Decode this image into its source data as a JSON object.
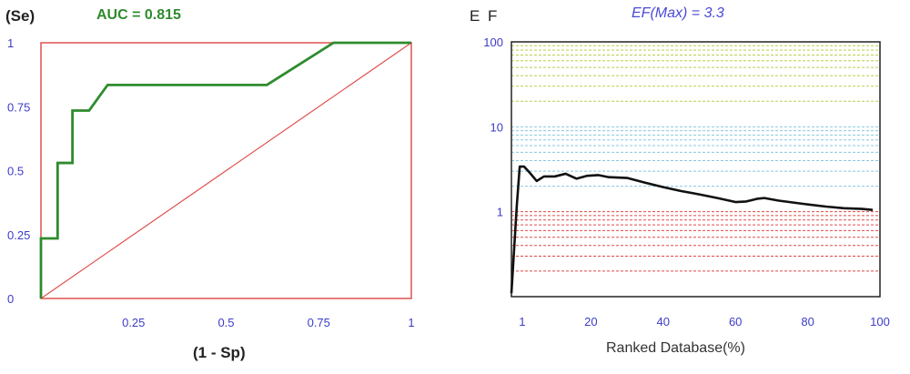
{
  "chart_data": [
    {
      "type": "line",
      "title": "AUC = 0.815",
      "ylabel": "(Se)",
      "xlabel": "(1 - Sp)",
      "xlim": [
        0,
        1
      ],
      "ylim": [
        0,
        1
      ],
      "x_ticks": [
        "0.25",
        "0.5",
        "0.75",
        "1"
      ],
      "y_ticks": [
        "0",
        "0.25",
        "0.5",
        "0.75",
        "1"
      ],
      "series": [
        {
          "color": "#2e8b2e",
          "points": [
            [
              0,
              0
            ],
            [
              0,
              0.235
            ],
            [
              0.045,
              0.235
            ],
            [
              0.045,
              0.53
            ],
            [
              0.085,
              0.53
            ],
            [
              0.085,
              0.735
            ],
            [
              0.13,
              0.735
            ],
            [
              0.18,
              0.835
            ],
            [
              0.61,
              0.835
            ],
            [
              0.79,
              1.0
            ],
            [
              1.0,
              1.0
            ]
          ]
        },
        {
          "color": "#e05050",
          "points": [
            [
              0,
              0
            ],
            [
              1,
              1
            ]
          ]
        }
      ],
      "frame_color": "#e05050"
    },
    {
      "type": "line",
      "title": "EF(Max) = 3.3",
      "ylabel": "E F",
      "xlabel": "Ranked Database(%)",
      "xlim": [
        -2,
        100
      ],
      "ylim": [
        0.1,
        100
      ],
      "y_scale": "log",
      "x_ticks": [
        "1",
        "20",
        "40",
        "60",
        "80",
        "100"
      ],
      "y_ticks": [
        "1",
        "10",
        "100"
      ],
      "reference_lines": {
        "green": {
          "color": "#b9cf47",
          "values": [
            20,
            30,
            40,
            50,
            60,
            70,
            80,
            90,
            100
          ]
        },
        "blue": {
          "color": "#88c8e0",
          "values": [
            2,
            3,
            4,
            5,
            6,
            7,
            8,
            9,
            10
          ]
        },
        "red": {
          "color": "#e04848",
          "values": [
            0.2,
            0.3,
            0.4,
            0.5,
            0.6,
            0.7,
            0.8,
            0.9,
            1.0
          ]
        }
      },
      "series": [
        {
          "color": "#111111",
          "points": [
            [
              -2,
              0.11
            ],
            [
              -0.5,
              1.2
            ],
            [
              0.3,
              3.4
            ],
            [
              1.5,
              3.4
            ],
            [
              3,
              2.9
            ],
            [
              5,
              2.3
            ],
            [
              7,
              2.6
            ],
            [
              10,
              2.6
            ],
            [
              13,
              2.8
            ],
            [
              16,
              2.45
            ],
            [
              19,
              2.65
            ],
            [
              22,
              2.7
            ],
            [
              25,
              2.55
            ],
            [
              30,
              2.5
            ],
            [
              35,
              2.2
            ],
            [
              40,
              1.95
            ],
            [
              45,
              1.75
            ],
            [
              50,
              1.6
            ],
            [
              55,
              1.45
            ],
            [
              60,
              1.3
            ],
            [
              63,
              1.32
            ],
            [
              66,
              1.42
            ],
            [
              68,
              1.45
            ],
            [
              72,
              1.35
            ],
            [
              78,
              1.25
            ],
            [
              85,
              1.15
            ],
            [
              90,
              1.1
            ],
            [
              95,
              1.08
            ],
            [
              98,
              1.05
            ]
          ]
        }
      ]
    }
  ]
}
